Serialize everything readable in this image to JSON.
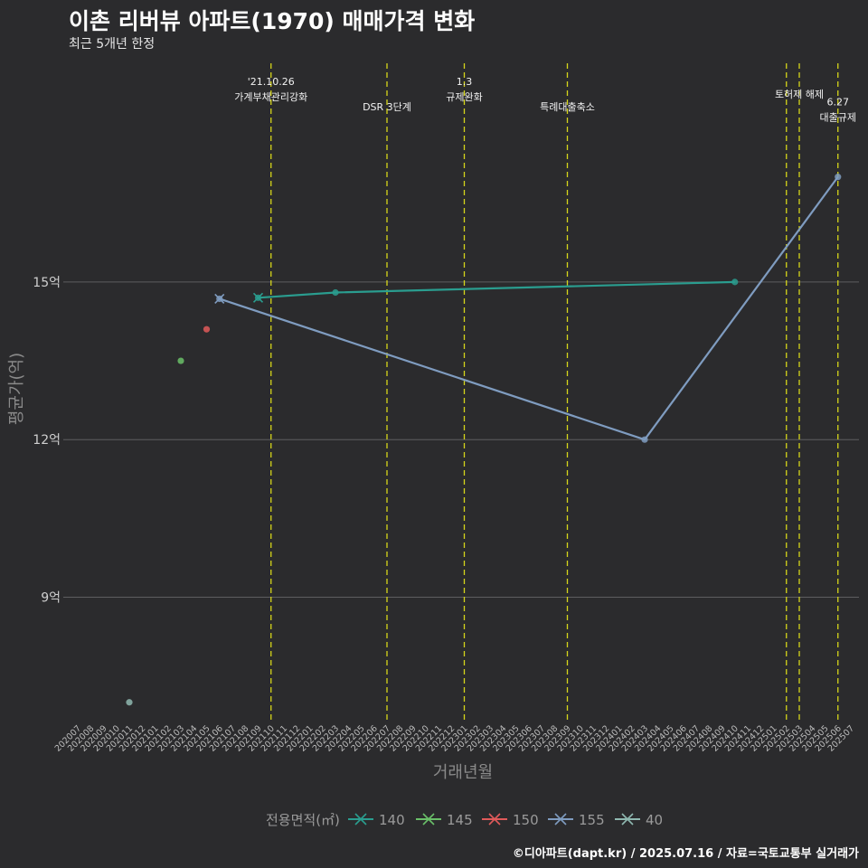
{
  "title": "이촌 리버뷰 아파트(1970) 매매가격 변화",
  "subtitle": "최근 5개년 한정",
  "footer": "©디아파트(dapt.kr) / 2025.07.16 / 자료=국토교통부 실거래가",
  "chart_data": {
    "type": "line",
    "xlabel": "거래년월",
    "ylabel": "평균가(억)",
    "ylim": [
      6.6,
      19.3
    ],
    "categories": [
      "202007",
      "202008",
      "202009",
      "202010",
      "202011",
      "202012",
      "202101",
      "202102",
      "202103",
      "202104",
      "202105",
      "202106",
      "202107",
      "202108",
      "202109",
      "202110",
      "202111",
      "202112",
      "202201",
      "202202",
      "202203",
      "202204",
      "202205",
      "202206",
      "202207",
      "202208",
      "202209",
      "202210",
      "202211",
      "202212",
      "202301",
      "202302",
      "202303",
      "202304",
      "202305",
      "202306",
      "202307",
      "202308",
      "202309",
      "202310",
      "202311",
      "202312",
      "202401",
      "202402",
      "202403",
      "202404",
      "202405",
      "202406",
      "202407",
      "202408",
      "202409",
      "202410",
      "202411",
      "202412",
      "202501",
      "202502",
      "202503",
      "202504",
      "202505",
      "202506",
      "202507"
    ],
    "yticks": [
      {
        "value": 9,
        "label": "9억"
      },
      {
        "value": 12,
        "label": "12억"
      },
      {
        "value": 15,
        "label": "15억"
      }
    ],
    "legend_title": "전용면적(㎡)",
    "legend": [
      "140",
      "145",
      "150",
      "155",
      "40"
    ],
    "series": [
      {
        "name": "140",
        "color": "#2a9d8f",
        "points": [
          {
            "x": "202109",
            "y": 14.7
          },
          {
            "x": "202203",
            "y": 14.8
          },
          {
            "x": "202410",
            "y": 15.0
          }
        ]
      },
      {
        "name": "145",
        "color": "#6abf69",
        "points": [
          {
            "x": "202103",
            "y": 13.5
          }
        ]
      },
      {
        "name": "150",
        "color": "#e05a5a",
        "points": [
          {
            "x": "202105",
            "y": 14.1
          }
        ]
      },
      {
        "name": "155",
        "color": "#7f9cc0",
        "points": [
          {
            "x": "202106",
            "y": 14.68
          },
          {
            "x": "202403",
            "y": 12.0
          },
          {
            "x": "202506",
            "y": 17.0
          }
        ]
      },
      {
        "name": "40",
        "color": "#8fb8b0",
        "points": [
          {
            "x": "202011",
            "y": 7.0
          }
        ]
      }
    ],
    "events": [
      {
        "x": "202110",
        "lines": [
          "'21.10.26",
          "가계부채관리강화"
        ],
        "level": 0
      },
      {
        "x": "202207",
        "lines": [
          "DSR 3단계"
        ],
        "level": 2
      },
      {
        "x": "202301",
        "lines": [
          "1.3",
          "규제완화"
        ],
        "level": 0
      },
      {
        "x": "202309",
        "lines": [
          "특례대출축소"
        ],
        "level": 2
      },
      {
        "x": "202502",
        "lines": [],
        "level": 1
      },
      {
        "x": "202503",
        "lines": [
          "토허제 해제"
        ],
        "level": 1
      },
      {
        "x": "202506",
        "lines": [
          "6.27",
          "대출규제"
        ],
        "level": 1.6
      }
    ]
  }
}
